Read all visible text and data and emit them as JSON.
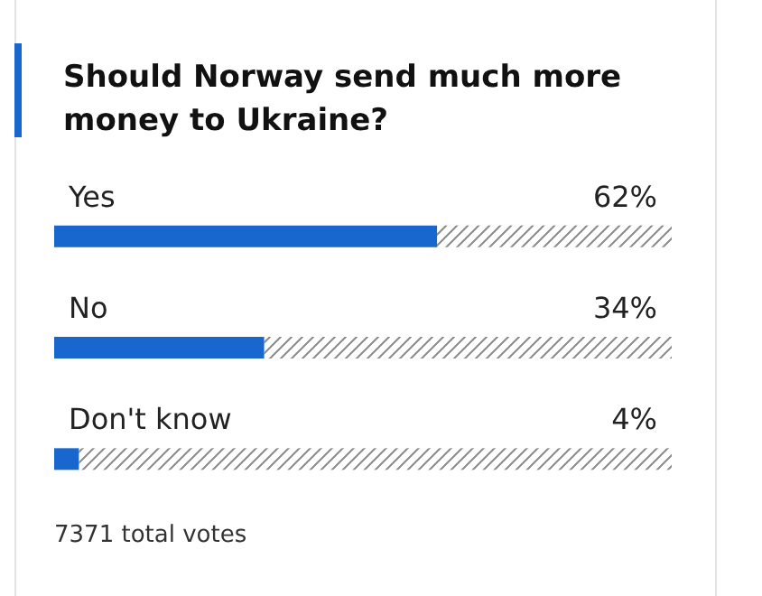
{
  "chart_data": {
    "type": "bar",
    "orientation": "horizontal",
    "title": "Should Norway send much more money to Ukraine?",
    "categories": [
      "Yes",
      "No",
      "Don't know"
    ],
    "values": [
      62,
      34,
      4
    ],
    "value_labels": [
      "62%",
      "34%",
      "4%"
    ],
    "color": "#1767ce",
    "xlim": [
      0,
      100
    ],
    "tick_labels": "y",
    "annotations": [
      "7371 total votes"
    ]
  }
}
